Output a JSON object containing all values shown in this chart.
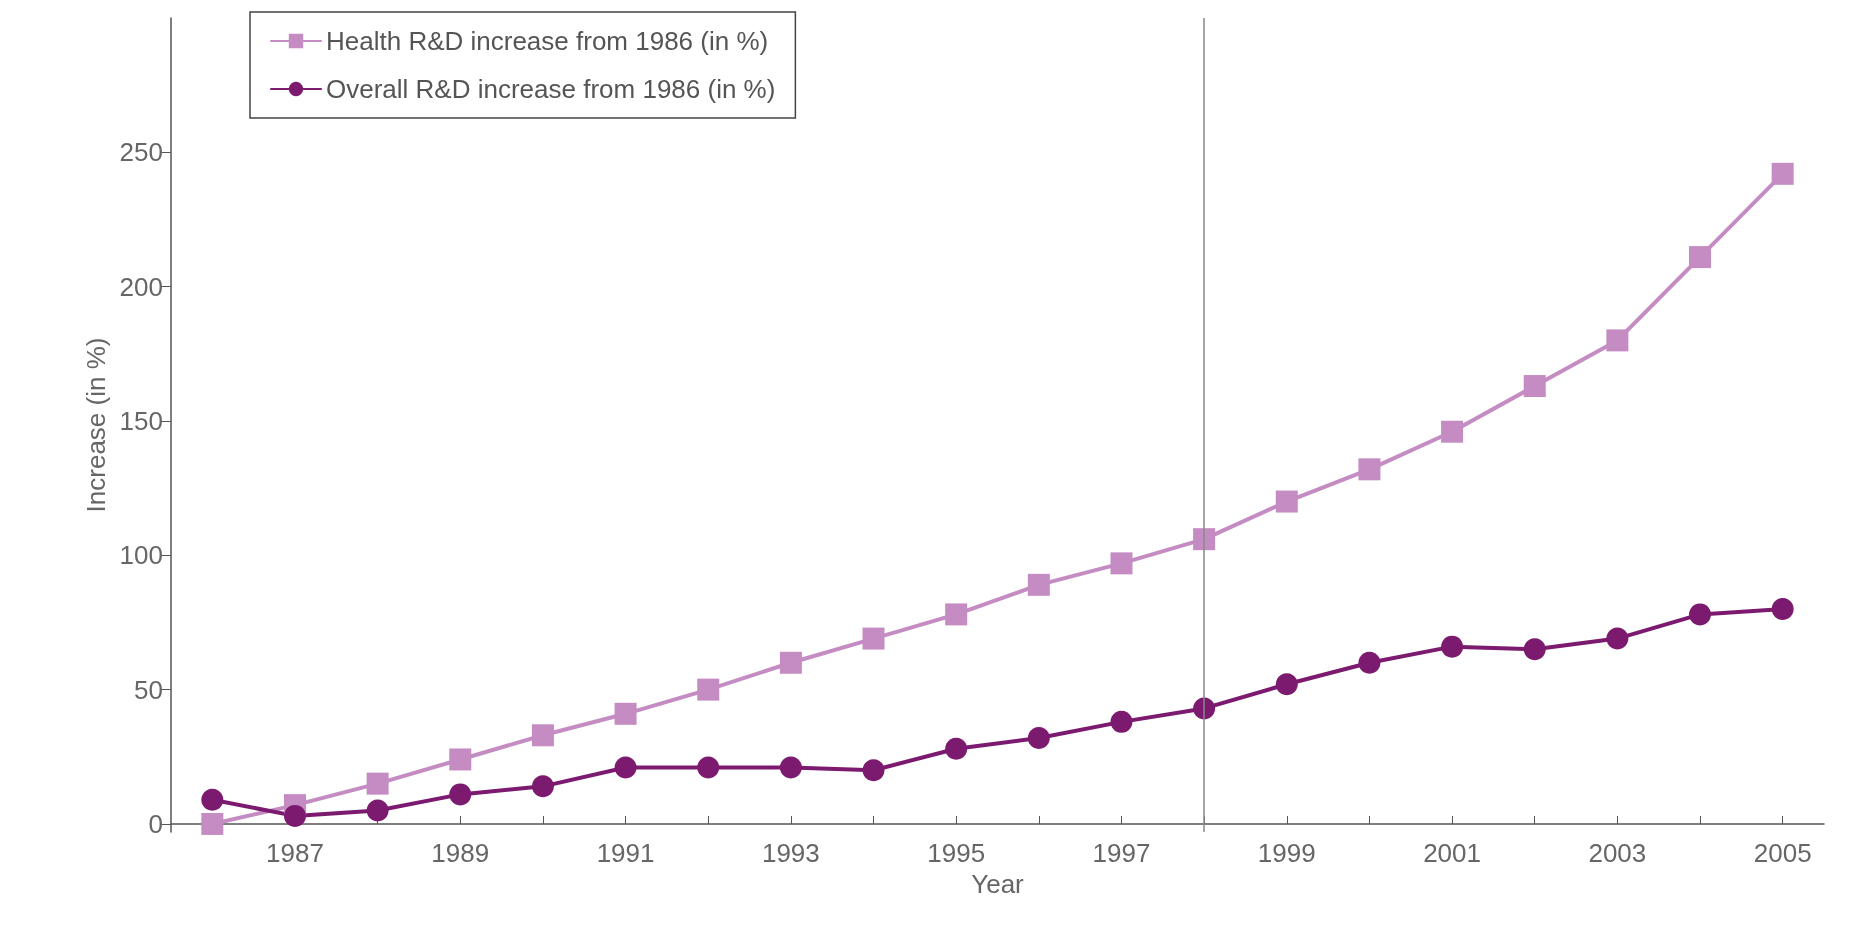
{
  "chart_data": {
    "type": "line",
    "xlabel": "Year",
    "ylabel": "Increase (in %)",
    "x": [
      1986,
      1987,
      1988,
      1989,
      1990,
      1991,
      1992,
      1993,
      1994,
      1995,
      1996,
      1997,
      1998,
      1999,
      2000,
      2001,
      2002,
      2003,
      2004,
      2005
    ],
    "series": [
      {
        "name": "Health R&D increase from 1986 (in %)",
        "color": "#c48cc2",
        "marker": "square",
        "values": [
          0,
          7,
          15,
          24,
          33,
          41,
          50,
          60,
          69,
          78,
          89,
          97,
          106,
          120,
          132,
          146,
          163,
          180,
          211,
          242
        ]
      },
      {
        "name": "Overall R&D increase from 1986 (in %)",
        "color": "#7b1a6f",
        "marker": "circle",
        "values": [
          9,
          3,
          5,
          11,
          14,
          21,
          21,
          21,
          20,
          28,
          32,
          38,
          43,
          52,
          60,
          66,
          65,
          69,
          78,
          80
        ]
      }
    ],
    "xlim": [
      1985.5,
      2005.5
    ],
    "xticks": [
      {
        "value": 1986,
        "label": null
      },
      1987,
      {
        "value": 1988,
        "label": null
      },
      1989,
      {
        "value": 1990,
        "label": null
      },
      1991,
      {
        "value": 1992,
        "label": null
      },
      1993,
      {
        "value": 1994,
        "label": null
      },
      1995,
      {
        "value": 1996,
        "label": null
      },
      1997,
      {
        "value": 1998,
        "label": null
      },
      1999,
      {
        "value": 2000,
        "label": null
      },
      2001,
      {
        "value": 2002,
        "label": null
      },
      2003,
      {
        "value": 2004,
        "label": null
      },
      2005
    ],
    "ylim": [
      -3,
      300
    ],
    "yticks": [
      0,
      50,
      100,
      150,
      200,
      250
    ],
    "ref_lines": [
      {
        "axis": "x",
        "value": 1998,
        "color": "#888888"
      }
    ],
    "grid": false,
    "legend": "top left",
    "line_style": "solid"
  }
}
